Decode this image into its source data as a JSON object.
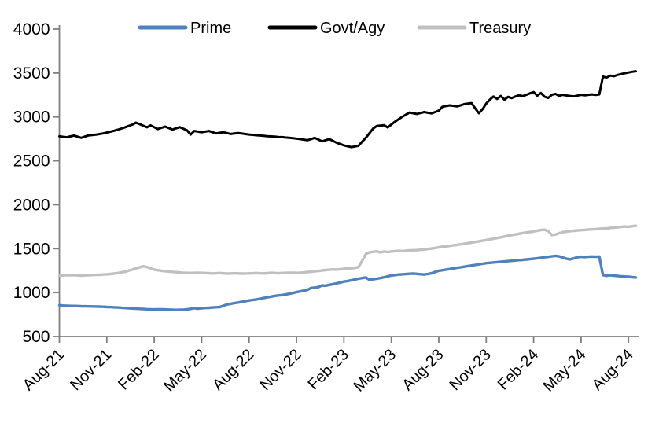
{
  "page": {
    "background": "#FFFFFF"
  },
  "chart_data": {
    "type": "line",
    "title": "",
    "xlabel": "",
    "ylabel": "",
    "ylim": [
      500,
      4000
    ],
    "y_ticks": [
      500,
      1000,
      1500,
      2000,
      2500,
      3000,
      3500,
      4000
    ],
    "x_tick_labels": [
      "Aug-21",
      "Nov-21",
      "Feb-22",
      "May-22",
      "Aug-22",
      "Nov-22",
      "Feb-23",
      "May-23",
      "Aug-23",
      "Nov-23",
      "Feb-24",
      "May-24",
      "Aug-24"
    ],
    "x_unit": "weeks since Aug-2021 (weekly observations)",
    "grid": false,
    "legend_position": "top",
    "axis_color": "#7F7F7F",
    "text_color": "#000000",
    "series": [
      {
        "name": "Prime",
        "color": "#4F81BD",
        "values": [
          855,
          852,
          850,
          848,
          847,
          846,
          845,
          844,
          843,
          842,
          841,
          840,
          838,
          836,
          835,
          832,
          830,
          828,
          825,
          822,
          820,
          818,
          815,
          813,
          811,
          809,
          808,
          809,
          810,
          808,
          806,
          804,
          803,
          804,
          805,
          810,
          815,
          822,
          818,
          821,
          825,
          827,
          830,
          833,
          836,
          850,
          865,
          872,
          880,
          887,
          895,
          902,
          910,
          916,
          922,
          930,
          938,
          946,
          954,
          962,
          967,
          972,
          978,
          986,
          995,
          1005,
          1013,
          1022,
          1031,
          1052,
          1057,
          1062,
          1082,
          1078,
          1088,
          1096,
          1105,
          1115,
          1125,
          1132,
          1140,
          1149,
          1158,
          1165,
          1172,
          1145,
          1152,
          1158,
          1165,
          1175,
          1185,
          1195,
          1200,
          1205,
          1208,
          1211,
          1214,
          1217,
          1213,
          1209,
          1205,
          1212,
          1220,
          1235,
          1248,
          1255,
          1262,
          1268,
          1275,
          1282,
          1288,
          1295,
          1302,
          1308,
          1315,
          1322,
          1328,
          1335,
          1339,
          1343,
          1347,
          1350,
          1354,
          1358,
          1362,
          1366,
          1370,
          1373,
          1377,
          1381,
          1385,
          1391,
          1396,
          1402,
          1407,
          1413,
          1418,
          1412,
          1400,
          1385,
          1378,
          1390,
          1402,
          1408,
          1405,
          1408,
          1410,
          1408,
          1410,
          1200,
          1192,
          1198,
          1194,
          1190,
          1186,
          1183,
          1180,
          1176,
          1172
        ]
      },
      {
        "name": "Govt/Agy",
        "color": "#000000",
        "values": [
          2780,
          2774,
          2768,
          2778,
          2788,
          2775,
          2762,
          2776,
          2790,
          2794,
          2798,
          2805,
          2812,
          2822,
          2832,
          2843,
          2854,
          2868,
          2882,
          2897,
          2912,
          2935,
          2918,
          2900,
          2882,
          2904,
          2883,
          2862,
          2876,
          2890,
          2873,
          2856,
          2870,
          2884,
          2865,
          2846,
          2800,
          2840,
          2833,
          2826,
          2833,
          2840,
          2826,
          2812,
          2819,
          2826,
          2816,
          2806,
          2811,
          2816,
          2811,
          2805,
          2800,
          2796,
          2792,
          2788,
          2785,
          2781,
          2778,
          2775,
          2772,
          2770,
          2766,
          2762,
          2758,
          2753,
          2748,
          2741,
          2735,
          2748,
          2762,
          2742,
          2722,
          2735,
          2748,
          2727,
          2706,
          2691,
          2676,
          2666,
          2656,
          2664,
          2672,
          2717,
          2762,
          2815,
          2868,
          2896,
          2901,
          2906,
          2880,
          2913,
          2946,
          2974,
          3002,
          3026,
          3050,
          3042,
          3034,
          3045,
          3056,
          3048,
          3040,
          3056,
          3072,
          3116,
          3124,
          3132,
          3126,
          3120,
          3133,
          3146,
          3152,
          3158,
          3098,
          3042,
          3088,
          3152,
          3196,
          3232,
          3205,
          3238,
          3196,
          3228,
          3214,
          3232,
          3246,
          3236,
          3252,
          3268,
          3282,
          3242,
          3272,
          3230,
          3216,
          3252,
          3262,
          3240,
          3252,
          3244,
          3238,
          3234,
          3242,
          3252,
          3246,
          3252,
          3256,
          3250,
          3256,
          3458,
          3448,
          3470,
          3464,
          3478,
          3488,
          3498,
          3506,
          3514,
          3520
        ]
      },
      {
        "name": "Treasury",
        "color": "#C0C0C0",
        "values": [
          1195,
          1196,
          1197,
          1198,
          1197,
          1196,
          1194,
          1196,
          1198,
          1200,
          1202,
          1203,
          1205,
          1208,
          1212,
          1217,
          1222,
          1230,
          1238,
          1250,
          1262,
          1275,
          1288,
          1300,
          1290,
          1276,
          1262,
          1255,
          1248,
          1244,
          1240,
          1236,
          1232,
          1229,
          1226,
          1224,
          1222,
          1224,
          1226,
          1224,
          1222,
          1220,
          1218,
          1220,
          1222,
          1219,
          1216,
          1218,
          1220,
          1218,
          1216,
          1217,
          1218,
          1220,
          1222,
          1220,
          1218,
          1221,
          1224,
          1222,
          1220,
          1222,
          1224,
          1225,
          1226,
          1224,
          1226,
          1229,
          1234,
          1238,
          1242,
          1246,
          1252,
          1256,
          1260,
          1264,
          1262,
          1266,
          1270,
          1274,
          1277,
          1281,
          1290,
          1360,
          1440,
          1458,
          1464,
          1470,
          1458,
          1468,
          1462,
          1468,
          1472,
          1476,
          1472,
          1476,
          1480,
          1482,
          1484,
          1487,
          1490,
          1496,
          1502,
          1508,
          1515,
          1522,
          1527,
          1532,
          1538,
          1544,
          1550,
          1556,
          1563,
          1570,
          1577,
          1584,
          1591,
          1598,
          1606,
          1614,
          1622,
          1630,
          1639,
          1648,
          1655,
          1662,
          1670,
          1678,
          1684,
          1690,
          1696,
          1705,
          1712,
          1716,
          1700,
          1655,
          1662,
          1676,
          1688,
          1694,
          1700,
          1704,
          1708,
          1711,
          1714,
          1717,
          1720,
          1723,
          1726,
          1729,
          1732,
          1736,
          1740,
          1744,
          1748,
          1752,
          1748,
          1756,
          1760
        ]
      }
    ],
    "legend": [
      {
        "label": "Prime",
        "color": "#4F81BD"
      },
      {
        "label": "Govt/Agy",
        "color": "#000000"
      },
      {
        "label": "Treasury",
        "color": "#C0C0C0"
      }
    ]
  }
}
